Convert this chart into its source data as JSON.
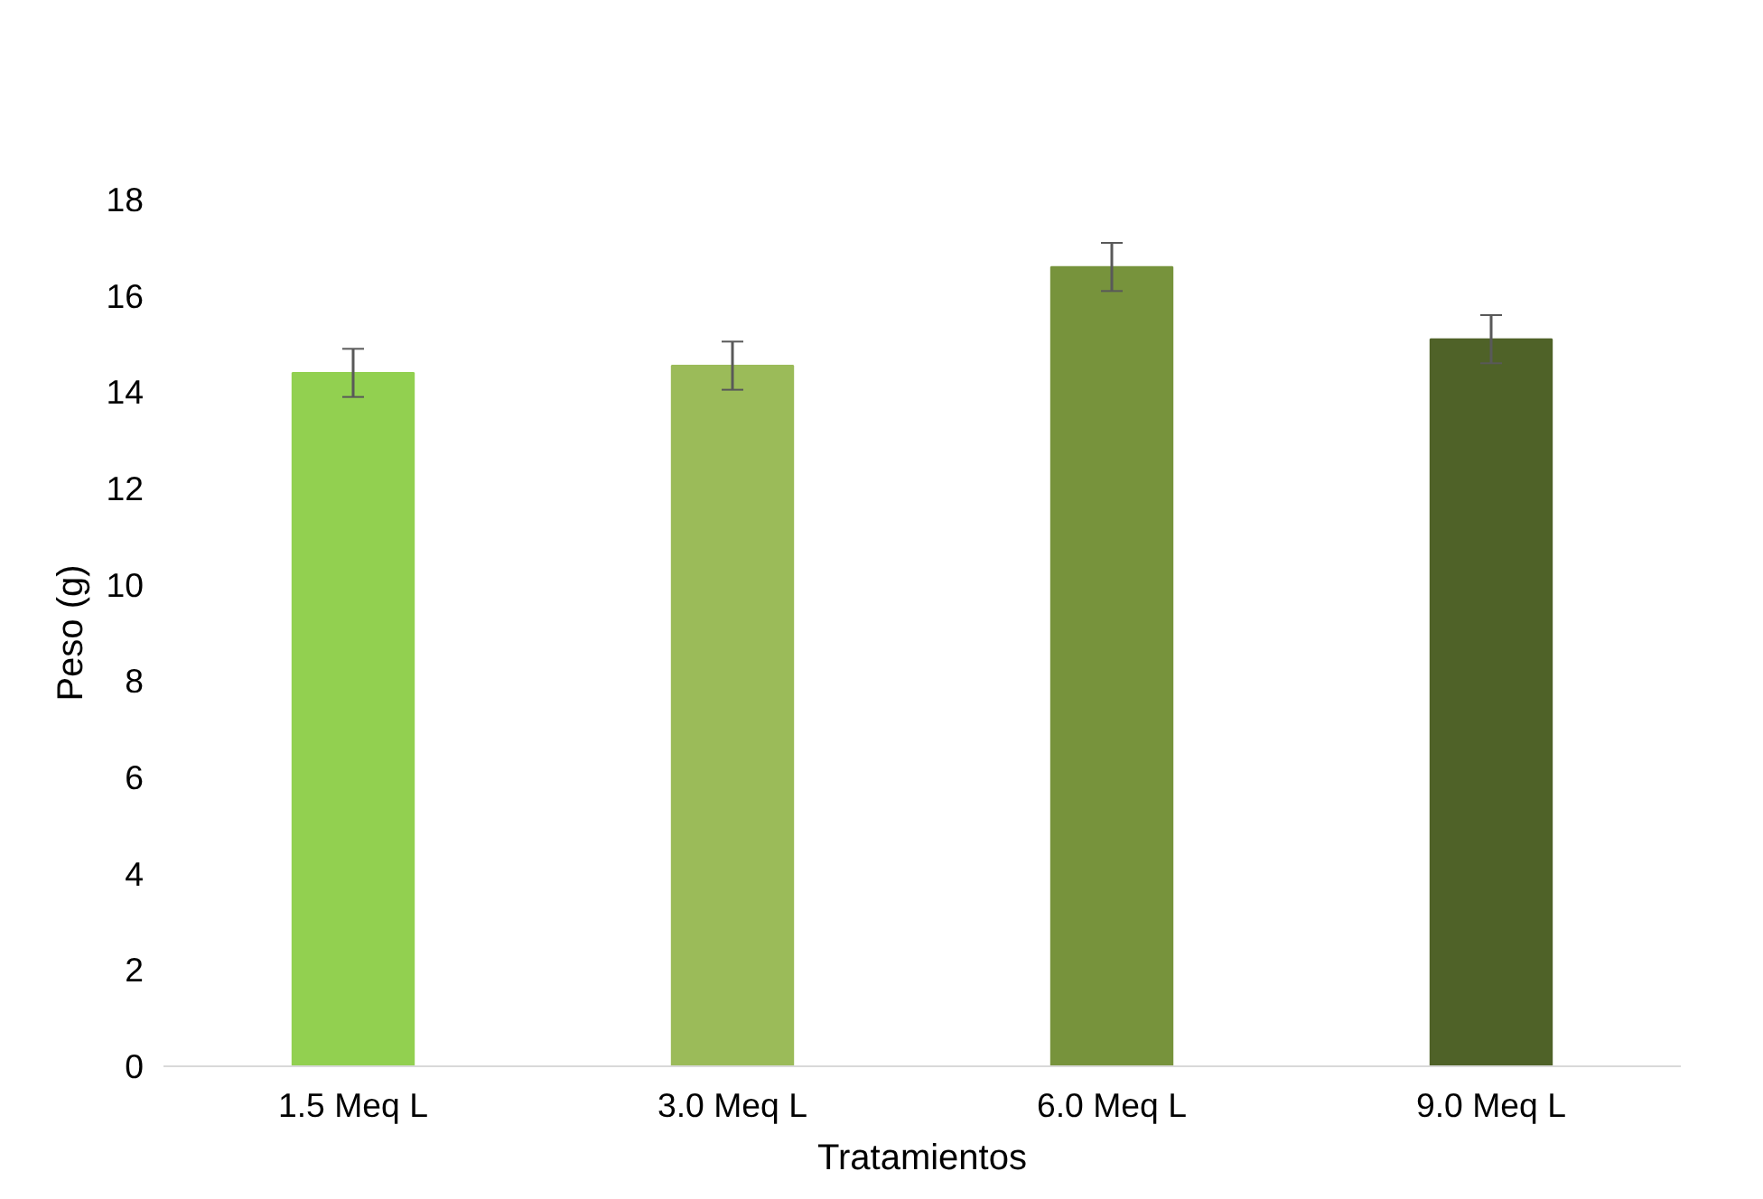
{
  "chart_data": {
    "type": "bar",
    "xlabel": "Tratamientos",
    "ylabel": "Peso (g)",
    "categories": [
      "1.5 Meq L",
      "3.0 Meq L",
      "6.0 Meq L",
      "9.0 Meq L"
    ],
    "values": [
      14.4,
      14.55,
      16.6,
      15.1
    ],
    "colors": [
      "#92d050",
      "#9bbb59",
      "#77933c",
      "#4f6228"
    ],
    "errors": [
      0.5,
      0.5,
      0.5,
      0.5
    ],
    "ylim": [
      0,
      18
    ],
    "yticks": [
      0,
      2,
      4,
      6,
      8,
      10,
      12,
      14,
      16,
      18
    ],
    "grid": false
  }
}
